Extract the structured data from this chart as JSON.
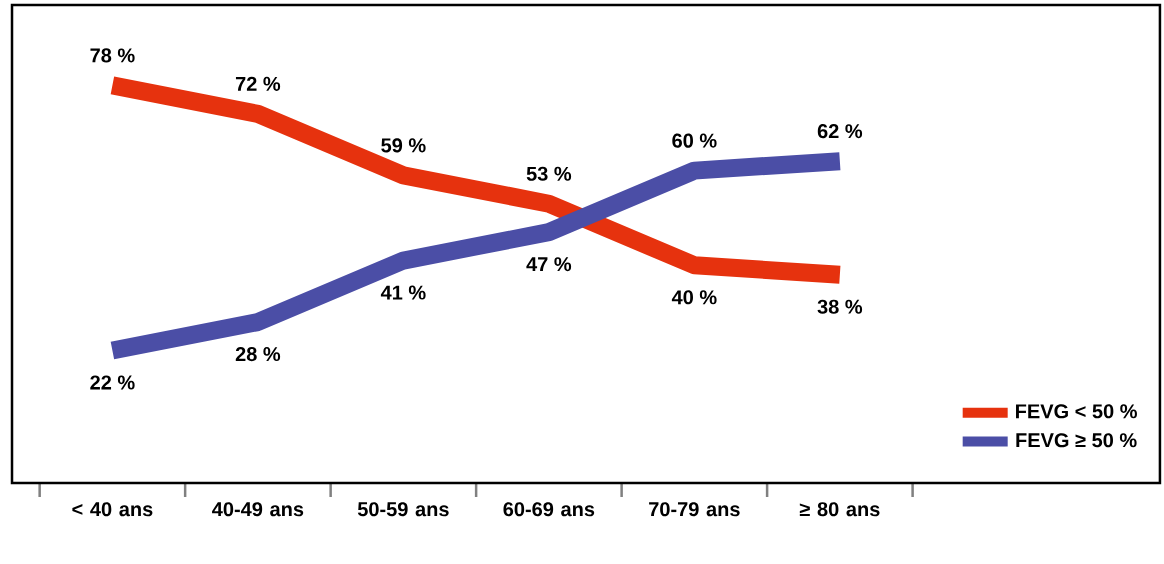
{
  "chart_data": {
    "type": "line",
    "categories": [
      "< 40 ans",
      "40-49 ans",
      "50-59 ans",
      "60-69 ans",
      "70-79 ans",
      "≥ 80 ans"
    ],
    "series": [
      {
        "name": "FEVG < 50 %",
        "color": "#e6320e",
        "values": [
          78,
          72,
          59,
          53,
          40,
          38
        ],
        "value_labels": [
          "78 %",
          "72 %",
          "59 %",
          "53 %",
          "40 %",
          "38 %"
        ]
      },
      {
        "name": "FEVG ≥ 50 %",
        "color": "#4b4ea6",
        "values": [
          22,
          28,
          41,
          47,
          60,
          62
        ],
        "value_labels": [
          "22 %",
          "28 %",
          "41 %",
          "47 %",
          "60 %",
          "62 %"
        ]
      }
    ],
    "ylim": [
      -6,
      95
    ],
    "legend": "bottom right",
    "grid": false,
    "marker": "none",
    "line_style": "solid"
  }
}
